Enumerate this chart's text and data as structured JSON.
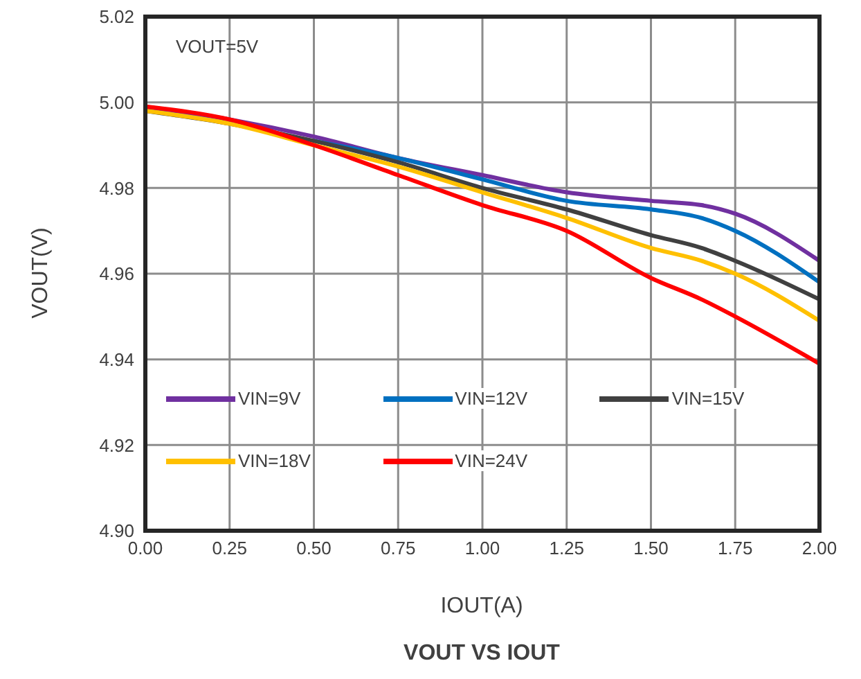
{
  "chart_data": {
    "type": "line",
    "title": "VOUT VS IOUT",
    "xlabel": "IOUT(A)",
    "ylabel": "VOUT(V)",
    "annotations": [
      "VOUT=5V"
    ],
    "x": [
      0,
      0.25,
      0.5,
      0.75,
      1,
      1.25,
      1.5,
      1.65,
      1.75,
      2
    ],
    "series": [
      {
        "name": "VIN=9V",
        "color": "#7030a0",
        "values": [
          4.999,
          4.996,
          4.992,
          4.987,
          4.983,
          4.979,
          4.977,
          4.976,
          4.974,
          4.963
        ]
      },
      {
        "name": "VIN=12V",
        "color": "#0070c0",
        "values": [
          null,
          null,
          4.991,
          4.987,
          4.982,
          4.977,
          4.975,
          4.973,
          4.97,
          4.958
        ]
      },
      {
        "name": "VIN=15V",
        "color": "#404040",
        "values": [
          4.998,
          4.995,
          4.991,
          4.986,
          4.98,
          4.975,
          4.969,
          4.966,
          4.963,
          4.954
        ]
      },
      {
        "name": "VIN=18V",
        "color": "#ffc000",
        "values": [
          4.998,
          4.995,
          4.99,
          4.985,
          4.979,
          4.973,
          4.966,
          4.963,
          4.96,
          4.949
        ]
      },
      {
        "name": "VIN=24V",
        "color": "#ff0000",
        "values": [
          4.999,
          4.996,
          4.99,
          4.983,
          4.976,
          4.97,
          4.959,
          4.954,
          4.95,
          4.939
        ]
      }
    ],
    "xlim": [
      0,
      2
    ],
    "xticks": [
      {
        "value": 0,
        "label": "0.00"
      },
      {
        "value": 0.25,
        "label": "0.25"
      },
      {
        "value": 0.5,
        "label": "0.50"
      },
      {
        "value": 0.75,
        "label": "0.75"
      },
      {
        "value": 1,
        "label": "1.00"
      },
      {
        "value": 1.25,
        "label": "1.25"
      },
      {
        "value": 1.5,
        "label": "1.50"
      },
      {
        "value": 1.75,
        "label": "1.75"
      },
      {
        "value": 2,
        "label": "2.00"
      }
    ],
    "ylim": [
      4.9,
      5.02
    ],
    "yticks": [
      {
        "value": 4.9,
        "label": "4.90"
      },
      4.92,
      4.94,
      4.96,
      4.98,
      {
        "value": 5,
        "label": "5.00"
      },
      5.02
    ],
    "grid": true,
    "legend": "bottom",
    "marker": "none",
    "line_style": "solid"
  }
}
